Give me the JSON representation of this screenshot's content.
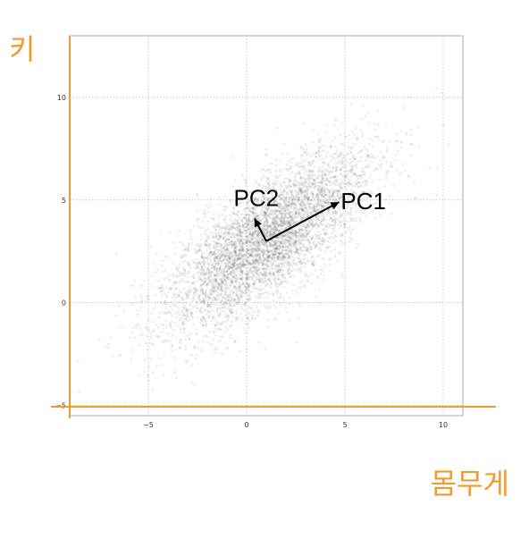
{
  "chart_data": {
    "type": "scatter",
    "title": "",
    "xlabel": "몸무게",
    "ylabel": "키",
    "xlim": [
      -9,
      11
    ],
    "ylim": [
      -5.5,
      13
    ],
    "xticks": [
      -5,
      0,
      5,
      10
    ],
    "yticks": [
      -5,
      0,
      5,
      10
    ],
    "grid": true,
    "point_color": "#000000",
    "cluster": {
      "center": [
        1.0,
        3.0
      ],
      "pc1_direction": [
        0.78,
        0.62
      ],
      "pc1_spread": 3.2,
      "pc2_spread": 1.2,
      "point_count": 5000
    },
    "arrows": [
      {
        "name": "PC1",
        "from": [
          1.0,
          3.0
        ],
        "to": [
          4.7,
          4.9
        ]
      },
      {
        "name": "PC2",
        "from": [
          1.0,
          3.0
        ],
        "to": [
          0.4,
          4.1
        ]
      }
    ]
  },
  "axis_color": "#f39a2c",
  "axis_title_color": "#f39a2c"
}
